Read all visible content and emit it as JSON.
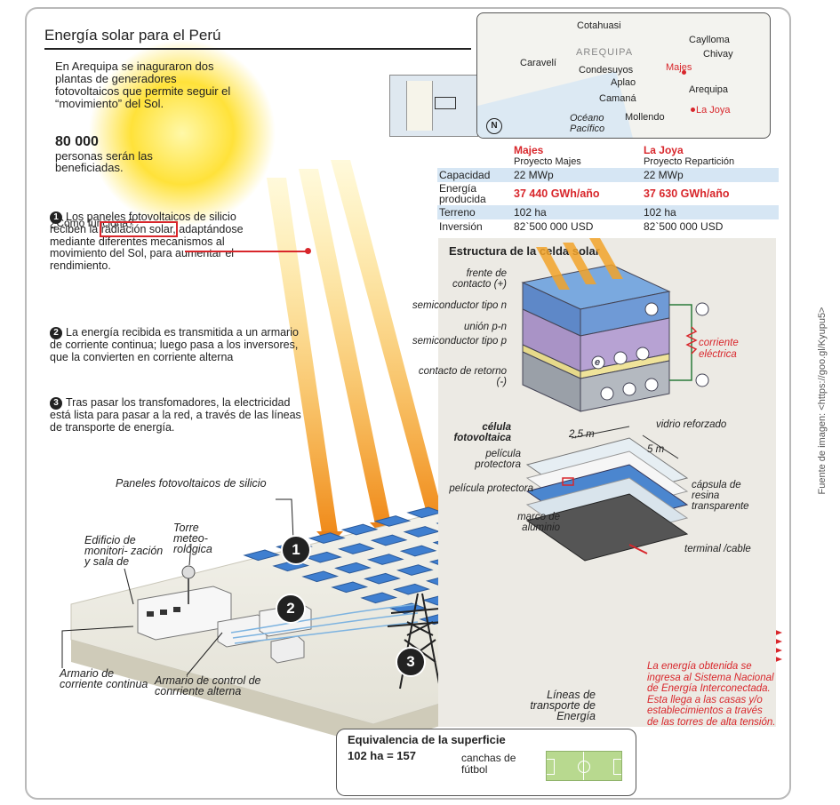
{
  "title": "Energía solar para el Perú",
  "intro": {
    "text": "En Arequipa se inaguraron dos plantas de generadores fotovoltaicos que permite seguir el “movimiento” del Sol.",
    "beneficiaries_count": "80 000",
    "beneficiaries_label": "personas serán las beneficiadas."
  },
  "how_it_works": {
    "heading": "¿Cómo funciona?",
    "steps": [
      {
        "num": "1",
        "before": "Los paneles fotovoltaicos de silicio reciben la",
        "highlight": "radiación solar,",
        "after": "adaptándose mediante diferentes mecanismos al movimiento del Sol, para aumentar el rendimiento."
      },
      {
        "num": "2",
        "text": "La energía recibida es transmitida a un armario de corriente continua; luego pasa a los inversores, que la convierten en corriente alterna"
      },
      {
        "num": "3",
        "text": "Tras pasar los transfomadores, la electricidad está lista para pasar a la red, a través de las líneas de transporte de energía."
      }
    ]
  },
  "map": {
    "region": "AREQUIPA",
    "places": [
      "Cotahuasi",
      "Caylloma",
      "Chivay",
      "Caravelí",
      "Condesuyos",
      "Majes",
      "Aplao",
      "Arequipa",
      "Camaná",
      "La Joya",
      "Mollendo",
      "Océano Pacífico"
    ],
    "highlighted": [
      "Majes",
      "La Joya"
    ],
    "north": "N"
  },
  "projects": {
    "columns": [
      {
        "name": "Majes",
        "project": "Proyecto Majes"
      },
      {
        "name": "La Joya",
        "project": "Proyecto Repartición"
      }
    ],
    "rows": [
      {
        "label": "Capacidad",
        "majes": "22 MWp",
        "la_joya": "22 MWp"
      },
      {
        "label": "Energía producida",
        "majes": "37 440 GWh/año",
        "la_joya": "37 630 GWh/año"
      },
      {
        "label": "Terreno",
        "majes": "102 ha",
        "la_joya": "102 ha"
      },
      {
        "label": "Inversión",
        "majes": "82`500 000 USD",
        "la_joya": "82`500 000 USD"
      }
    ]
  },
  "cell": {
    "heading": "Estructura de la celda solar",
    "layers": [
      "frente de contacto (+)",
      "semiconductor tipo n",
      "unión p-n",
      "semiconductor tipo p",
      "contacto de retorno (-)"
    ],
    "current_label": "corriente eléctrica",
    "electron": "e"
  },
  "module": {
    "heading": "célula fotovoltaica",
    "dim_a": "2,5 m",
    "dim_b": "5 m",
    "parts": [
      "vidrio reforzado",
      "película protectora",
      "cápsula de resina transparente",
      "película protectora",
      "marco de aluminio",
      "terminal /cable"
    ]
  },
  "plant": {
    "panels_label": "Paneles fotovoltaicos de silicio",
    "tower_label": "Torre meteo- rológica",
    "building_label": "Edificio de monitori- zación y sala de",
    "dc_label": "Armario de corriente continua",
    "ac_label": "Armario de control de conrriente alterna",
    "lines_label": "Líneas de transporte de Energía",
    "markers": [
      "1",
      "2",
      "3"
    ]
  },
  "grid_note": "La energía obtenida se ingresa al Sistema Nacional de Energía Interconectada. Esta llega a las casas y/o establecimientos a través de las torres de alta tensión.",
  "equivalence": {
    "title": "Equivalencia de la superficie",
    "value": "102 ha = 157",
    "unit": "canchas de fútbol"
  },
  "source": "Fuente de imagen: <https://goo.gl/Kyupu5>",
  "colors": {
    "accent_red": "#d8262b",
    "sun": "#f7c300",
    "panel_blue": "#3f7fd0",
    "table_band": "#d6e6f4"
  }
}
